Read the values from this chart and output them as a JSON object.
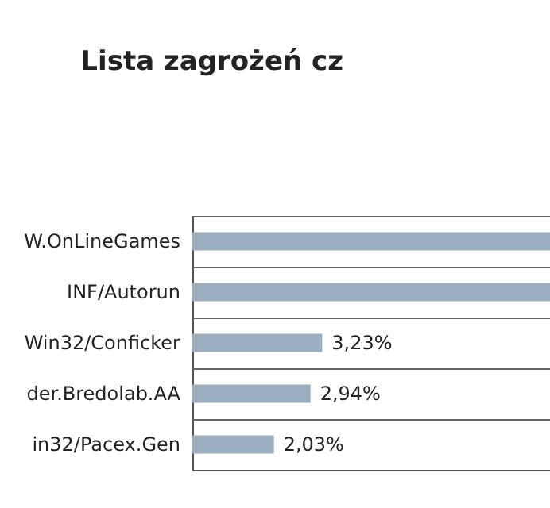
{
  "chart_data": {
    "type": "bar",
    "orientation": "horizontal",
    "title": "Lista zagrożeń cz",
    "categories": [
      "W.OnLineGames",
      "INF/Autorun",
      "Win32/Conficker",
      "der.Bredolab.AA",
      "in32/Pacex.Gen"
    ],
    "values": [
      8.9,
      8.9,
      3.23,
      2.94,
      2.03
    ],
    "value_labels": [
      null,
      null,
      "3,23%",
      "2,94%",
      "2,03%"
    ],
    "color": "#9aaebf",
    "xlim": [
      0,
      8.9
    ],
    "tick_labels": "y",
    "grid": "y"
  }
}
